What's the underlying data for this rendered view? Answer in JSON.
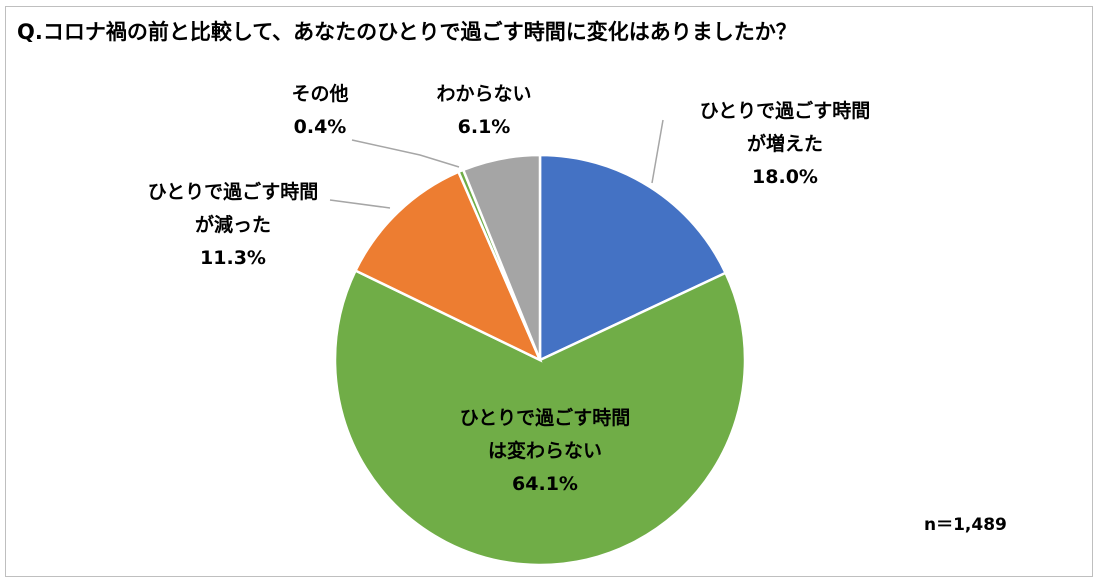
{
  "title": "Q.コロナ禍の前と比較して、あなたのひとりで過ごす時間に変化はありましたか？",
  "note": "n＝1,489",
  "chart_data": {
    "type": "pie",
    "title": "Q.コロナ禍の前と比較して、あなたのひとりで過ごす時間に変化はありましたか？",
    "start": "top, clockwise",
    "slices": [
      {
        "label_lines": [
          "ひとりで過ごす時間",
          "が増えた"
        ],
        "value": 18.0,
        "value_label": "18.0%",
        "color": "#4472c4"
      },
      {
        "label_lines": [
          "ひとりで過ごす時間",
          "は変わらない"
        ],
        "value": 64.1,
        "value_label": "64.1%",
        "color": "#70ad47"
      },
      {
        "label_lines": [
          "ひとりで過ごす時間",
          "が減った"
        ],
        "value": 11.3,
        "value_label": "11.3%",
        "color": "#ed7d31"
      },
      {
        "label_lines": [
          "その他"
        ],
        "value": 0.4,
        "value_label": "0.4%",
        "color": "#70ad47"
      },
      {
        "label_lines": [
          "わからない"
        ],
        "value": 6.1,
        "value_label": "6.1%",
        "color": "#a5a5a5"
      }
    ],
    "total_n": "n＝1,489"
  }
}
